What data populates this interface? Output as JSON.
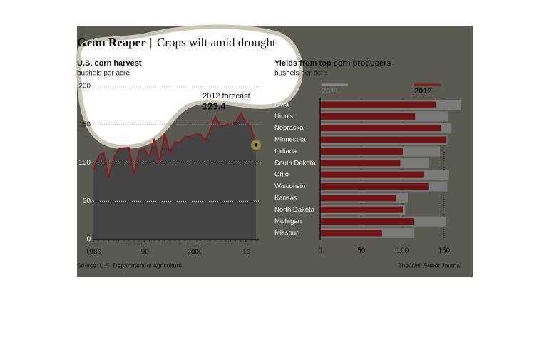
{
  "header": {
    "title": "Grim Reaper",
    "separator": "|",
    "subtitle": "Crops wilt amid drought"
  },
  "footer": {
    "source": "Source: U.S. Department of Agriculture",
    "credit": "The Wall Street Journal"
  },
  "chart_data": [
    {
      "type": "line",
      "title": "U.S. corn harvest",
      "axis_label": "bushels per acre",
      "x": [
        1980,
        1981,
        1982,
        1983,
        1984,
        1985,
        1986,
        1987,
        1988,
        1989,
        1990,
        1991,
        1992,
        1993,
        1994,
        1995,
        1996,
        1997,
        1998,
        1999,
        2000,
        2001,
        2002,
        2003,
        2004,
        2005,
        2006,
        2007,
        2008,
        2009,
        2010,
        2011,
        2012
      ],
      "values": [
        91.0,
        108.9,
        113.2,
        81.1,
        106.7,
        118.0,
        119.4,
        119.8,
        84.6,
        116.3,
        118.5,
        108.6,
        131.5,
        100.7,
        138.6,
        113.5,
        127.1,
        126.7,
        134.4,
        133.8,
        136.9,
        138.2,
        129.3,
        142.2,
        160.3,
        147.9,
        149.1,
        150.7,
        153.3,
        164.4,
        152.8,
        147.2,
        123.4
      ],
      "color": "#8b1a1a",
      "area_color": "#444444",
      "annotation": "2012 forecast",
      "xlim": [
        1980,
        2012
      ],
      "xticks": [
        1980,
        {
          "value": 1990,
          "label": "'90"
        },
        2000,
        {
          "value": 2010,
          "label": "'10"
        }
      ],
      "ylim": [
        0,
        200
      ],
      "yticks": [
        0,
        50,
        100,
        150,
        200
      ],
      "grid": true
    },
    {
      "type": "hbar",
      "title": "Yields from top corn producers",
      "axis_label": "bushels per acre",
      "categories": [
        "Iowa",
        "Illinois",
        "Nebraska",
        "Minnesota",
        "Indiana",
        "South Dakota",
        "Ohio",
        "Wisconsin",
        "Kansas",
        "North Dakota",
        "Michigan",
        "Missouri"
      ],
      "series": [
        {
          "name": "2011",
          "color": "#7a7a7a",
          "values": [
            170,
            155,
            159,
            154,
            145,
            131,
            156,
            154,
            106,
            103,
            152,
            113
          ]
        },
        {
          "name": "2012",
          "color": "#6e1414",
          "values": [
            140,
            115,
            146,
            153,
            100,
            97,
            125,
            131,
            92,
            100,
            113,
            75
          ]
        }
      ],
      "xlim": [
        0,
        170
      ],
      "xticks": [
        0,
        50,
        100,
        150
      ],
      "grid": true
    }
  ]
}
